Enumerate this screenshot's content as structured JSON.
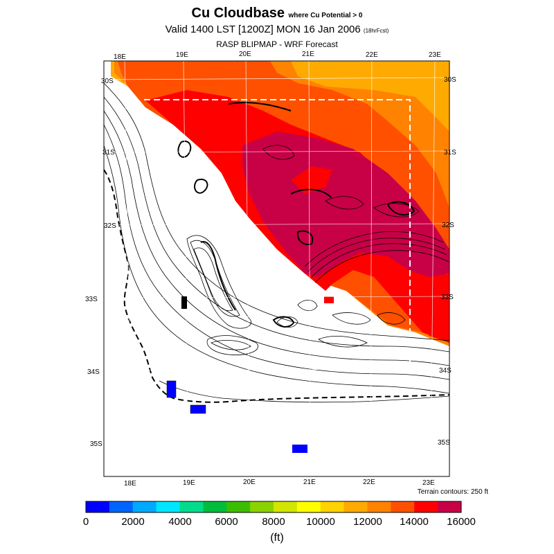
{
  "title": {
    "main": "Cu Cloudbase",
    "qualifier": "where Cu Potential > 0",
    "valid": "Valid 1400 LST [1200Z] MON 16 Jan 2006",
    "forecast_tag": "(18hrFcst)",
    "source": "RASP BLIPMAP - WRF Forecast"
  },
  "map": {
    "top_lon_labels": [
      "18E",
      "19E",
      "20E",
      "21E",
      "22E",
      "23E"
    ],
    "bottom_lon_labels": [
      "18E",
      "19E",
      "20E",
      "21E",
      "22E",
      "23E"
    ],
    "left_lat_labels": [
      "30S",
      "31S",
      "32S",
      "33S",
      "34S",
      "35S"
    ],
    "right_lat_labels": [
      "30S",
      "31S",
      "32S",
      "33S",
      "34S",
      "35S"
    ],
    "terrain_note": "Terrain contours: 250 ft"
  },
  "colorbar": {
    "tick_labels": [
      "0",
      "2000",
      "4000",
      "6000",
      "8000",
      "10000",
      "12000",
      "14000",
      "16000"
    ],
    "colors": [
      "#0000ff",
      "#0064ff",
      "#00aaff",
      "#00e6ff",
      "#00dc8c",
      "#00be3c",
      "#3cbe00",
      "#8cd200",
      "#d2e600",
      "#ffff00",
      "#ffd200",
      "#ffaa00",
      "#ff8200",
      "#ff5000",
      "#ff0000",
      "#c80046"
    ],
    "unit": "(ft)"
  }
}
